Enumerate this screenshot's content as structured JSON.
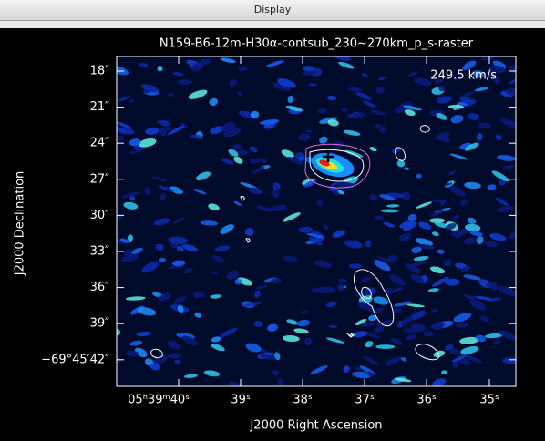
{
  "window": {
    "title": "Display"
  },
  "plot": {
    "title": "N159-B6-12m-H30α-contsub_230~270km_p_s-raster",
    "annotation": "249.5 km/s",
    "x_label": "J2000 Right Ascension",
    "y_label": "J2000 Declination",
    "y_tick_labels": [
      "18″",
      "21″",
      "24″",
      "27″",
      "30″",
      "33″",
      "36″",
      "39″",
      "−69°45′42″"
    ],
    "x_tick_labels": [
      "05ʰ39ᵐ40ˢ",
      "39ˢ",
      "38ˢ",
      "37ˢ",
      "36ˢ",
      "35ˢ"
    ]
  }
}
